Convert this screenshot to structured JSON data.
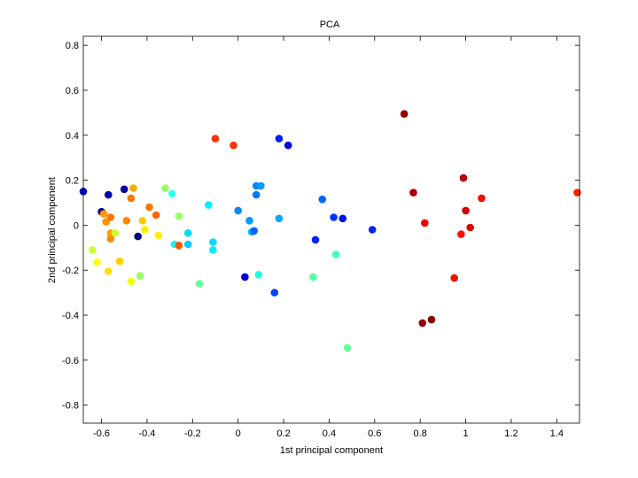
{
  "chart_data": {
    "type": "scatter",
    "title": "PCA",
    "xlabel": "1st principal component",
    "ylabel": "2nd principal component",
    "xlim": [
      -0.68,
      1.5
    ],
    "ylim": [
      -0.88,
      0.84
    ],
    "xticks": [
      -0.6,
      -0.4,
      -0.2,
      0,
      0.2,
      0.4,
      0.6,
      0.8,
      1,
      1.2,
      1.4
    ],
    "xtick_labels": [
      "-0.6",
      "-0.4",
      "-0.2",
      "0",
      "0.2",
      "0.4",
      "0.6",
      "0.8",
      "1",
      "1.2",
      "1.4"
    ],
    "yticks": [
      -0.8,
      -0.6,
      -0.4,
      -0.2,
      0,
      0.2,
      0.4,
      0.6,
      0.8
    ],
    "ytick_labels": [
      "-0.8",
      "-0.6",
      "-0.4",
      "-0.2",
      "0",
      "0.2",
      "0.4",
      "0.6",
      "0.8"
    ],
    "grid": false,
    "legend": "none",
    "colormap": "jet",
    "points": [
      {
        "x": -0.68,
        "y": 0.15,
        "color": "#0000c0"
      },
      {
        "x": -0.6,
        "y": 0.06,
        "color": "#000090"
      },
      {
        "x": -0.57,
        "y": 0.135,
        "color": "#0000b0"
      },
      {
        "x": -0.5,
        "y": 0.16,
        "color": "#0000a0"
      },
      {
        "x": -0.44,
        "y": -0.05,
        "color": "#000080"
      },
      {
        "x": -0.59,
        "y": 0.05,
        "color": "#ff9900"
      },
      {
        "x": -0.58,
        "y": 0.015,
        "color": "#ff9000"
      },
      {
        "x": -0.56,
        "y": 0.035,
        "color": "#ff7700"
      },
      {
        "x": -0.56,
        "y": -0.035,
        "color": "#ffa000"
      },
      {
        "x": -0.56,
        "y": -0.06,
        "color": "#ff8800"
      },
      {
        "x": -0.54,
        "y": -0.035,
        "color": "#ccff33"
      },
      {
        "x": -0.64,
        "y": -0.11,
        "color": "#ccff33"
      },
      {
        "x": -0.62,
        "y": -0.165,
        "color": "#ffff00"
      },
      {
        "x": -0.57,
        "y": -0.205,
        "color": "#ffe000"
      },
      {
        "x": -0.52,
        "y": -0.16,
        "color": "#ffd000"
      },
      {
        "x": -0.47,
        "y": -0.25,
        "color": "#eeff11"
      },
      {
        "x": -0.43,
        "y": -0.225,
        "color": "#99ff66"
      },
      {
        "x": -0.49,
        "y": 0.02,
        "color": "#ff8800"
      },
      {
        "x": -0.47,
        "y": 0.12,
        "color": "#ff7700"
      },
      {
        "x": -0.46,
        "y": 0.165,
        "color": "#ffaa00"
      },
      {
        "x": -0.42,
        "y": 0.02,
        "color": "#ffcc00"
      },
      {
        "x": -0.41,
        "y": -0.02,
        "color": "#ffee00"
      },
      {
        "x": -0.39,
        "y": 0.08,
        "color": "#ff7700"
      },
      {
        "x": -0.36,
        "y": 0.045,
        "color": "#ff6600"
      },
      {
        "x": -0.35,
        "y": -0.045,
        "color": "#ffee00"
      },
      {
        "x": -0.32,
        "y": 0.165,
        "color": "#99ff66"
      },
      {
        "x": -0.29,
        "y": 0.14,
        "color": "#33ffee"
      },
      {
        "x": -0.28,
        "y": -0.085,
        "color": "#22eeff"
      },
      {
        "x": -0.26,
        "y": -0.09,
        "color": "#ff5500"
      },
      {
        "x": -0.26,
        "y": 0.04,
        "color": "#99ff66"
      },
      {
        "x": -0.22,
        "y": -0.035,
        "color": "#00ddff"
      },
      {
        "x": -0.22,
        "y": -0.085,
        "color": "#00ccff"
      },
      {
        "x": -0.17,
        "y": -0.26,
        "color": "#66ff99"
      },
      {
        "x": -0.13,
        "y": 0.09,
        "color": "#00eeff"
      },
      {
        "x": -0.11,
        "y": -0.075,
        "color": "#00ddff"
      },
      {
        "x": -0.11,
        "y": -0.11,
        "color": "#00eeff"
      },
      {
        "x": -0.1,
        "y": 0.385,
        "color": "#ff3300"
      },
      {
        "x": -0.02,
        "y": 0.355,
        "color": "#ff3300"
      },
      {
        "x": 0.0,
        "y": 0.065,
        "color": "#0088ff"
      },
      {
        "x": 0.03,
        "y": -0.23,
        "color": "#0000e0"
      },
      {
        "x": 0.05,
        "y": 0.02,
        "color": "#0099ff"
      },
      {
        "x": 0.06,
        "y": -0.03,
        "color": "#00bbff"
      },
      {
        "x": 0.07,
        "y": -0.025,
        "color": "#0066ff"
      },
      {
        "x": 0.08,
        "y": 0.135,
        "color": "#0077ff"
      },
      {
        "x": 0.08,
        "y": 0.175,
        "color": "#0088ff"
      },
      {
        "x": 0.09,
        "y": -0.22,
        "color": "#22ffdd"
      },
      {
        "x": 0.1,
        "y": 0.175,
        "color": "#0099ff"
      },
      {
        "x": 0.16,
        "y": -0.3,
        "color": "#0044ff"
      },
      {
        "x": 0.18,
        "y": 0.385,
        "color": "#0022ee"
      },
      {
        "x": 0.18,
        "y": 0.03,
        "color": "#00aaff"
      },
      {
        "x": 0.22,
        "y": 0.355,
        "color": "#0000dd"
      },
      {
        "x": 0.33,
        "y": -0.23,
        "color": "#55ffaa"
      },
      {
        "x": 0.34,
        "y": -0.065,
        "color": "#0022ee"
      },
      {
        "x": 0.37,
        "y": 0.115,
        "color": "#0066ff"
      },
      {
        "x": 0.42,
        "y": 0.035,
        "color": "#0033ff"
      },
      {
        "x": 0.43,
        "y": -0.13,
        "color": "#44ffbb"
      },
      {
        "x": 0.46,
        "y": 0.03,
        "color": "#0011ee"
      },
      {
        "x": 0.48,
        "y": -0.545,
        "color": "#66ff99"
      },
      {
        "x": 0.59,
        "y": -0.02,
        "color": "#0022ee"
      },
      {
        "x": 0.73,
        "y": 0.495,
        "color": "#990000"
      },
      {
        "x": 0.77,
        "y": 0.145,
        "color": "#aa0000"
      },
      {
        "x": 0.81,
        "y": -0.435,
        "color": "#990000"
      },
      {
        "x": 0.82,
        "y": 0.01,
        "color": "#ee0000"
      },
      {
        "x": 0.85,
        "y": -0.42,
        "color": "#880000"
      },
      {
        "x": 0.95,
        "y": -0.235,
        "color": "#ee1100"
      },
      {
        "x": 0.98,
        "y": -0.04,
        "color": "#ff1100"
      },
      {
        "x": 0.99,
        "y": 0.21,
        "color": "#bb0000"
      },
      {
        "x": 1.0,
        "y": 0.065,
        "color": "#cc0000"
      },
      {
        "x": 1.02,
        "y": -0.01,
        "color": "#dd0000"
      },
      {
        "x": 1.07,
        "y": 0.12,
        "color": "#ee1100"
      },
      {
        "x": 1.49,
        "y": 0.145,
        "color": "#ff2200"
      }
    ]
  }
}
